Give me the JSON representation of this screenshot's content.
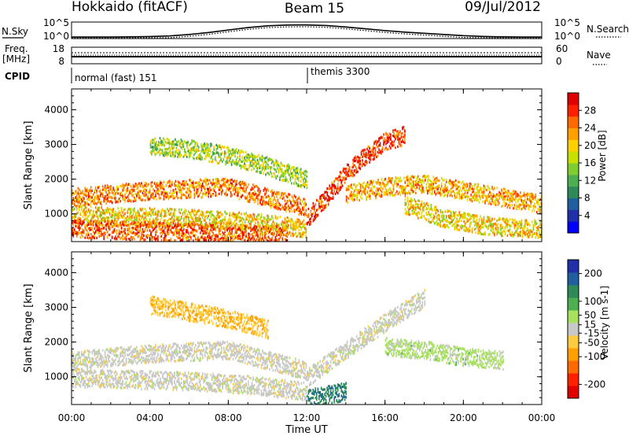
{
  "header": {
    "left_title": "Hokkaido (fitACF)",
    "center_title": "Beam 15",
    "right_title": "09/Jul/2012"
  },
  "chart_data": [
    {
      "type": "line",
      "panel": "sky-search",
      "left_label": "N.Sky",
      "right_label": "N.Search",
      "left_ticks": [
        "10^5",
        "10^0"
      ],
      "right_ticks": [
        "10^5",
        "10^0"
      ],
      "x": [
        0,
        1,
        2,
        3,
        4,
        5,
        6,
        7,
        8,
        9,
        10,
        11,
        12,
        13,
        14,
        15,
        16,
        17,
        18,
        19,
        20,
        21,
        22,
        23,
        24
      ],
      "series": [
        {
          "values": [
            0.05,
            0.05,
            0.05,
            0.06,
            0.08,
            0.12,
            0.22,
            0.35,
            0.52,
            0.68,
            0.8,
            0.85,
            0.86,
            0.82,
            0.72,
            0.6,
            0.48,
            0.38,
            0.3,
            0.22,
            0.14,
            0.09,
            0.06,
            0.05,
            0.05
          ]
        }
      ]
    },
    {
      "type": "line",
      "panel": "freq-nave",
      "left_label": "Freq.",
      "left_unit": "[MHz]",
      "right_label": "Nave",
      "left_ticks": [
        "18",
        "8"
      ],
      "right_ticks": [
        "60",
        "0"
      ],
      "series": [
        {
          "values": [
            11,
            11
          ]
        }
      ]
    },
    {
      "type": "table",
      "panel": "cpid",
      "label": "CPID",
      "segments": [
        {
          "start": 0,
          "name": "normal (fast) 151"
        },
        {
          "start": 12,
          "name": "themis 3300"
        }
      ]
    },
    {
      "type": "heatmap",
      "panel": "power",
      "ylabel": "Slant Range [km]",
      "yticks": [
        "1000",
        "2000",
        "3000",
        "4000"
      ],
      "ylim": [
        200,
        4600
      ],
      "colorbar": {
        "label": "Power [dB]",
        "ticks": [
          "28",
          "24",
          "20",
          "16",
          "12",
          "8",
          "4"
        ],
        "range": [
          0,
          32
        ],
        "colors": [
          "#0000ff",
          "#2030a8",
          "#1f5fa0",
          "#2e8b57",
          "#4caf50",
          "#7fce2f",
          "#c8e000",
          "#ffd000",
          "#ffa000",
          "#ff6a00",
          "#ff2000",
          "#e00000"
        ]
      },
      "bands": [
        {
          "t": [
            0,
            2,
            4,
            6,
            8,
            10,
            12
          ],
          "r": [
            1500,
            1600,
            1700,
            1750,
            1800,
            1500,
            1200
          ],
          "value": 24
        },
        {
          "t": [
            0,
            3,
            6,
            9,
            12
          ],
          "r": [
            1000,
            950,
            900,
            800,
            600
          ],
          "value": 20
        },
        {
          "t": [
            0,
            3,
            6,
            9,
            11
          ],
          "r": [
            600,
            550,
            500,
            450,
            400
          ],
          "value": 26
        },
        {
          "t": [
            4,
            6,
            8,
            10,
            12
          ],
          "r": [
            3000,
            2900,
            2700,
            2400,
            2000
          ],
          "value": 16
        },
        {
          "t": [
            12,
            13,
            14,
            15,
            16,
            17
          ],
          "r": [
            900,
            1500,
            2200,
            2700,
            3100,
            3300
          ],
          "value": 28
        },
        {
          "t": [
            14,
            16,
            18,
            20,
            22,
            24
          ],
          "r": [
            1600,
            1800,
            1900,
            1700,
            1500,
            1300
          ],
          "value": 22
        },
        {
          "t": [
            17,
            18,
            19,
            20,
            21,
            22,
            24
          ],
          "r": [
            1300,
            1100,
            900,
            800,
            700,
            650,
            600
          ],
          "value": 20
        }
      ]
    },
    {
      "type": "heatmap",
      "panel": "velocity",
      "xlabel": "Time UT",
      "ylabel": "Slant Range [km]",
      "yticks": [
        "1000",
        "2000",
        "3000",
        "4000"
      ],
      "xticks": [
        "00:00",
        "04:00",
        "08:00",
        "12:00",
        "16:00",
        "20:00",
        "00:00"
      ],
      "ylim": [
        200,
        4600
      ],
      "xlim": [
        0,
        24
      ],
      "colorbar": {
        "label": "Velocity [m s-1]",
        "ticks": [
          "200",
          "100",
          "50",
          "15",
          "-15",
          "-50",
          "-100",
          "-200"
        ],
        "range": [
          -250,
          250
        ],
        "colors": [
          "#e00000",
          "#ff2000",
          "#ff6a00",
          "#ffa000",
          "#ffcc40",
          "#c8c8c8",
          "#a8e060",
          "#4caf50",
          "#2e8b57",
          "#1f5fa0",
          "#2030a8"
        ]
      },
      "bands": [
        {
          "t": [
            0,
            2,
            4,
            6,
            8,
            10,
            12
          ],
          "r": [
            1500,
            1600,
            1700,
            1750,
            1800,
            1500,
            1200
          ],
          "value": 0
        },
        {
          "t": [
            0,
            3,
            6,
            9,
            12
          ],
          "r": [
            1000,
            950,
            900,
            800,
            600
          ],
          "value": 0
        },
        {
          "t": [
            4,
            6,
            8,
            10
          ],
          "r": [
            3100,
            2900,
            2700,
            2400
          ],
          "value": -60
        },
        {
          "t": [
            12,
            14,
            16,
            18
          ],
          "r": [
            1000,
            1800,
            2600,
            3300
          ],
          "value": 0
        },
        {
          "t": [
            16,
            18,
            20,
            22
          ],
          "r": [
            1900,
            1800,
            1600,
            1500
          ],
          "value": 40
        },
        {
          "t": [
            12,
            13,
            14
          ],
          "r": [
            400,
            500,
            600
          ],
          "value": 150
        }
      ]
    }
  ]
}
